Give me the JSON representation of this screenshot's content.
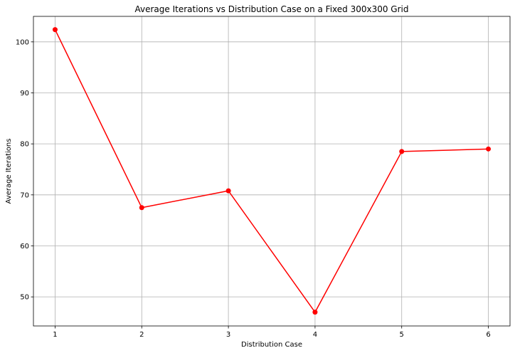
{
  "chart_data": {
    "type": "line",
    "title": "Average Iterations vs Distribution Case on a Fixed 300x300 Grid",
    "xlabel": "Distribution Case",
    "ylabel": "Average Iterations",
    "x": [
      1,
      2,
      3,
      4,
      5,
      6
    ],
    "series": [
      {
        "values": [
          102.4,
          67.5,
          70.8,
          47.0,
          78.5,
          79.0
        ],
        "color": "#ff0000",
        "marker": "circle"
      }
    ],
    "xlim": [
      0.75,
      6.25
    ],
    "ylim": [
      44.3,
      105.0
    ],
    "xticks": [
      1,
      2,
      3,
      4,
      5,
      6
    ],
    "yticks": [
      50,
      60,
      70,
      80,
      90,
      100
    ],
    "grid": true,
    "legend": false
  }
}
